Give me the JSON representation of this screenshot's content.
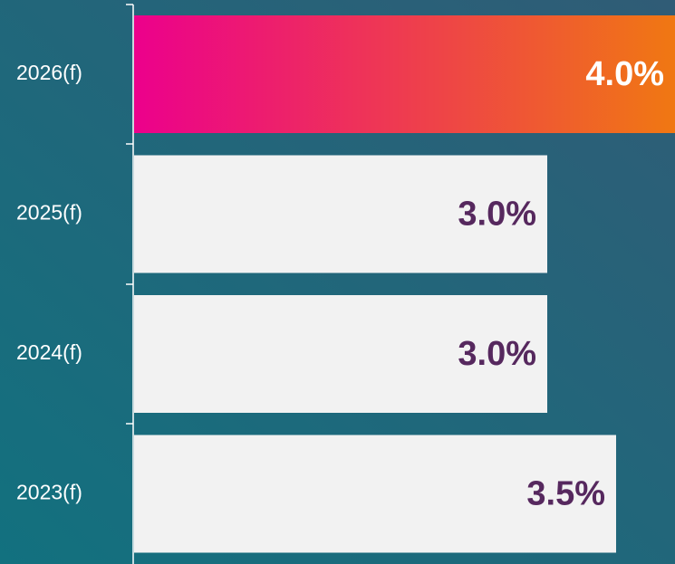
{
  "chart_data": {
    "type": "hbar",
    "categories": [
      "2026(f)",
      "2025(f)",
      "2024(f)",
      "2023(f)"
    ],
    "values": [
      4.0,
      3.0,
      3.0,
      3.5
    ],
    "value_labels": [
      "4.0%",
      "3.0%",
      "3.0%",
      "3.5%"
    ],
    "color": "#f2f2f2",
    "label_color": "#56285e",
    "highlight": {
      "index": 0,
      "gradient": [
        "#ec008c",
        "#f07a10"
      ],
      "label_color": "#ffffff"
    }
  }
}
